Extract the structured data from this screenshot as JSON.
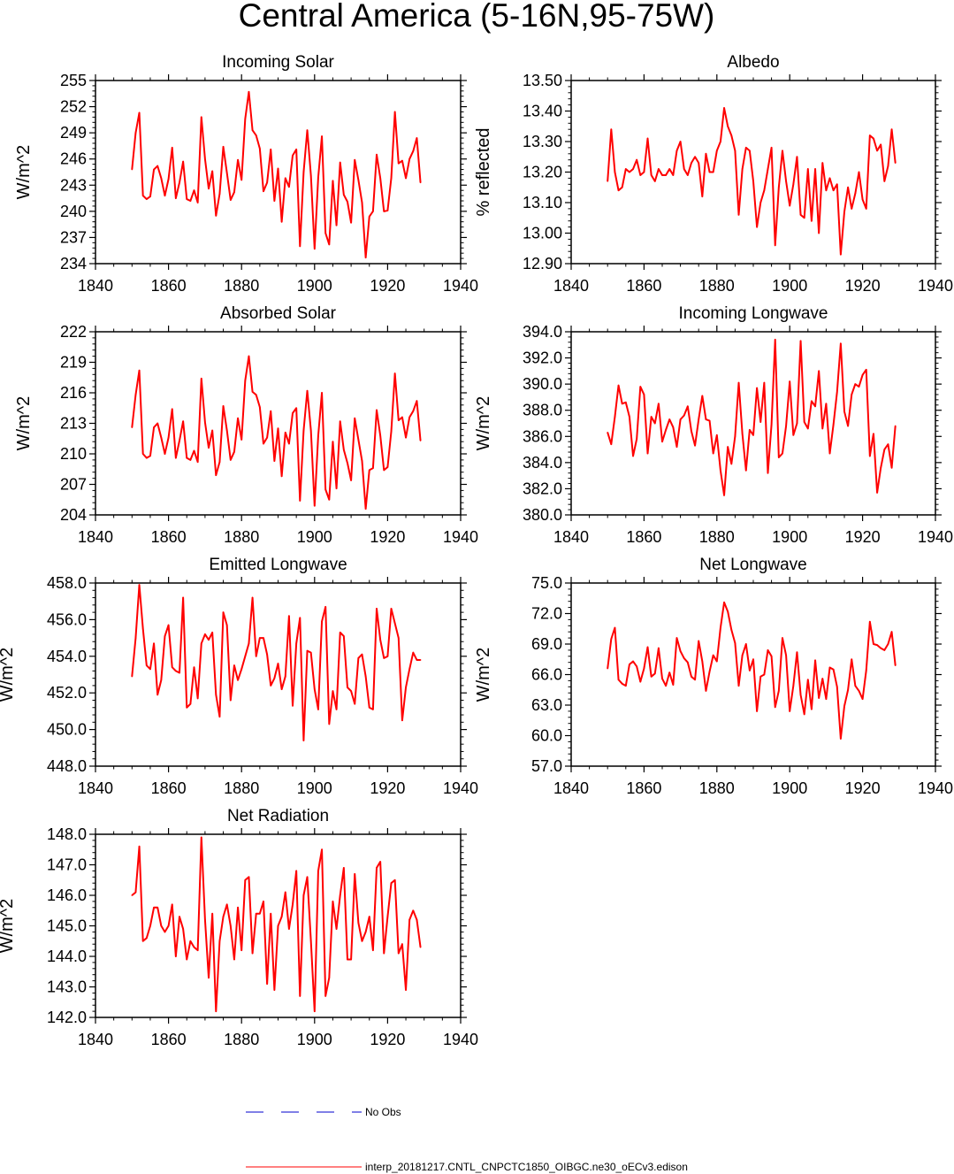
{
  "figure": {
    "title": "Central America (5-16N,95-75W)"
  },
  "colors": {
    "series": "#ff0000",
    "obs": "#0000cc",
    "axis": "#000000"
  },
  "legend": {
    "obs_label": "No Obs",
    "model_label": "interp_20181217.CNTL_CNPCTC1850_OIBGC.ne30_oECv3.edison"
  },
  "chart_data": [
    {
      "id": "incoming-solar",
      "type": "line",
      "title": "Incoming Solar",
      "ylabel": "W/m^2",
      "xlim": [
        1840,
        1940
      ],
      "ylim": [
        234,
        255
      ],
      "xticks": [
        1840,
        1860,
        1880,
        1900,
        1920,
        1940
      ],
      "xtick_labels": [
        "1840",
        "1860",
        "1880",
        "1900",
        "1920",
        "1940"
      ],
      "yticks": [
        234,
        237,
        240,
        243,
        246,
        249,
        252,
        255
      ],
      "ytick_labels": [
        "234",
        "237",
        "240",
        "243",
        "246",
        "249",
        "252",
        "255"
      ],
      "x_start": 1850,
      "values": [
        244.8,
        249.0,
        251.3,
        241.8,
        241.4,
        241.7,
        244.8,
        245.2,
        243.8,
        241.8,
        243.7,
        247.3,
        241.5,
        243.3,
        245.7,
        241.4,
        241.2,
        242.4,
        241.0,
        250.8,
        246.0,
        242.6,
        244.6,
        239.5,
        242.0,
        247.4,
        244.4,
        241.3,
        242.2,
        245.9,
        243.6,
        250.6,
        253.7,
        249.3,
        248.7,
        247.2,
        242.3,
        243.3,
        247.1,
        241.2,
        244.9,
        238.8,
        243.8,
        242.8,
        246.4,
        247.1,
        236.0,
        244.5,
        249.3,
        244.1,
        235.7,
        243.9,
        248.6,
        237.5,
        236.2,
        243.5,
        238.4,
        245.6,
        241.9,
        241.1,
        238.7,
        245.9,
        243.6,
        241.0,
        234.7,
        239.4,
        240.0,
        246.5,
        243.8,
        240.0,
        240.1,
        243.8,
        251.4,
        245.5,
        245.8,
        243.8,
        246.0,
        246.9,
        248.4,
        243.3
      ]
    },
    {
      "id": "albedo",
      "type": "line",
      "title": "Albedo",
      "ylabel": "% reflected",
      "xlim": [
        1840,
        1940
      ],
      "ylim": [
        12.9,
        13.5
      ],
      "xticks": [
        1840,
        1860,
        1880,
        1900,
        1920,
        1940
      ],
      "xtick_labels": [
        "1840",
        "1860",
        "1880",
        "1900",
        "1920",
        "1940"
      ],
      "yticks": [
        12.9,
        13.0,
        13.1,
        13.2,
        13.3,
        13.4,
        13.5
      ],
      "ytick_labels": [
        "12.90",
        "13.00",
        "13.10",
        "13.20",
        "13.30",
        "13.40",
        "13.50"
      ],
      "x_start": 1850,
      "values": [
        13.17,
        13.34,
        13.2,
        13.14,
        13.15,
        13.21,
        13.2,
        13.21,
        13.24,
        13.19,
        13.2,
        13.31,
        13.19,
        13.17,
        13.21,
        13.19,
        13.19,
        13.21,
        13.19,
        13.27,
        13.3,
        13.21,
        13.19,
        13.23,
        13.25,
        13.23,
        13.12,
        13.26,
        13.2,
        13.2,
        13.27,
        13.3,
        13.41,
        13.35,
        13.32,
        13.27,
        13.06,
        13.21,
        13.28,
        13.27,
        13.17,
        13.02,
        13.1,
        13.14,
        13.21,
        13.28,
        12.96,
        13.15,
        13.27,
        13.17,
        13.09,
        13.16,
        13.25,
        13.06,
        13.05,
        13.21,
        13.04,
        13.21,
        13.0,
        13.23,
        13.14,
        13.18,
        13.14,
        13.16,
        12.93,
        13.07,
        13.15,
        13.08,
        13.13,
        13.2,
        13.11,
        13.08,
        13.32,
        13.31,
        13.27,
        13.29,
        13.17,
        13.22,
        13.34,
        13.23
      ]
    },
    {
      "id": "absorbed-solar",
      "type": "line",
      "title": "Absorbed Solar",
      "ylabel": "W/m^2",
      "xlim": [
        1840,
        1940
      ],
      "ylim": [
        204,
        222
      ],
      "xticks": [
        1840,
        1860,
        1880,
        1900,
        1920,
        1940
      ],
      "xtick_labels": [
        "1840",
        "1860",
        "1880",
        "1900",
        "1920",
        "1940"
      ],
      "yticks": [
        204,
        207,
        210,
        213,
        216,
        219,
        222
      ],
      "ytick_labels": [
        "204",
        "207",
        "210",
        "213",
        "216",
        "219",
        "222"
      ],
      "x_start": 1850,
      "values": [
        212.6,
        215.8,
        218.2,
        210.0,
        209.6,
        209.8,
        212.6,
        213.0,
        211.6,
        210.0,
        211.6,
        214.4,
        209.6,
        211.3,
        213.2,
        209.6,
        209.4,
        210.3,
        209.2,
        217.4,
        213.1,
        210.6,
        212.3,
        207.9,
        209.2,
        214.7,
        212.3,
        209.4,
        210.2,
        213.5,
        211.4,
        217.2,
        219.6,
        216.1,
        215.8,
        214.6,
        211.0,
        211.6,
        214.2,
        209.3,
        212.5,
        207.8,
        212.1,
        211.0,
        214.0,
        214.5,
        205.4,
        212.3,
        216.2,
        212.3,
        204.9,
        211.8,
        216.0,
        206.5,
        205.5,
        211.2,
        206.6,
        213.2,
        210.4,
        209.1,
        207.4,
        213.5,
        211.4,
        209.3,
        204.6,
        208.4,
        208.6,
        214.3,
        211.8,
        208.4,
        208.7,
        212.2,
        217.9,
        213.3,
        213.6,
        211.6,
        213.6,
        214.2,
        215.2,
        211.3
      ]
    },
    {
      "id": "incoming-longwave",
      "type": "line",
      "title": "Incoming Longwave",
      "ylabel": "W/m^2",
      "xlim": [
        1840,
        1940
      ],
      "ylim": [
        380,
        394
      ],
      "xticks": [
        1840,
        1860,
        1880,
        1900,
        1920,
        1940
      ],
      "xtick_labels": [
        "1840",
        "1860",
        "1880",
        "1900",
        "1920",
        "1940"
      ],
      "yticks": [
        380,
        382,
        384,
        386,
        388,
        390,
        392,
        394
      ],
      "ytick_labels": [
        "380.0",
        "382.0",
        "384.0",
        "386.0",
        "388.0",
        "390.0",
        "392.0",
        "394.0"
      ],
      "x_start": 1850,
      "values": [
        386.3,
        385.4,
        387.5,
        389.9,
        388.5,
        388.6,
        387.5,
        384.5,
        385.8,
        389.8,
        389.2,
        384.7,
        387.5,
        387.0,
        388.5,
        385.6,
        386.5,
        387.3,
        386.7,
        385.2,
        387.3,
        387.6,
        388.3,
        386.4,
        385.3,
        387.3,
        389.1,
        387.3,
        387.2,
        384.7,
        386.1,
        383.4,
        381.5,
        385.2,
        383.9,
        386.0,
        390.1,
        386.2,
        383.4,
        386.5,
        386.1,
        389.7,
        387.1,
        390.1,
        383.2,
        386.9,
        393.4,
        384.4,
        384.7,
        386.8,
        390.2,
        386.1,
        387.0,
        393.3,
        387.1,
        386.6,
        388.7,
        388.3,
        391.0,
        386.6,
        388.5,
        384.7,
        386.9,
        389.4,
        393.1,
        387.9,
        386.8,
        389.2,
        390.0,
        389.8,
        390.7,
        391.1,
        384.5,
        386.2,
        381.7,
        383.6,
        385.0,
        385.4,
        383.6,
        386.8
      ]
    },
    {
      "id": "emitted-longwave",
      "type": "line",
      "title": "Emitted Longwave",
      "ylabel": "W/m^2",
      "xlim": [
        1840,
        1940
      ],
      "ylim": [
        448,
        458
      ],
      "xticks": [
        1840,
        1860,
        1880,
        1900,
        1920,
        1940
      ],
      "xtick_labels": [
        "1840",
        "1860",
        "1880",
        "1900",
        "1920",
        "1940"
      ],
      "yticks": [
        448,
        450,
        452,
        454,
        456,
        458
      ],
      "ytick_labels": [
        "448.0",
        "450.0",
        "452.0",
        "454.0",
        "456.0",
        "458.0"
      ],
      "x_start": 1850,
      "values": [
        452.9,
        455.0,
        457.9,
        455.5,
        453.5,
        453.3,
        454.7,
        451.9,
        452.7,
        455.1,
        455.7,
        453.4,
        453.2,
        453.1,
        457.2,
        451.2,
        451.4,
        453.4,
        451.7,
        454.7,
        455.2,
        454.9,
        455.3,
        451.9,
        450.7,
        456.4,
        455.7,
        451.6,
        453.5,
        452.7,
        453.3,
        454.0,
        454.7,
        457.2,
        454.0,
        455.0,
        455.0,
        454.1,
        452.4,
        452.8,
        453.6,
        452.2,
        452.9,
        456.2,
        451.3,
        454.7,
        456.1,
        449.4,
        454.3,
        454.2,
        452.2,
        451.1,
        455.9,
        456.7,
        450.3,
        452.1,
        451.1,
        455.3,
        455.1,
        452.3,
        452.1,
        451.4,
        453.9,
        454.1,
        452.9,
        451.2,
        451.1,
        456.6,
        454.9,
        453.9,
        454.0,
        456.6,
        455.8,
        455.0,
        450.5,
        452.3,
        453.3,
        454.2,
        453.8,
        453.8
      ]
    },
    {
      "id": "net-longwave",
      "type": "line",
      "title": "Net Longwave",
      "ylabel": "W/m^2",
      "xlim": [
        1840,
        1940
      ],
      "ylim": [
        57,
        75
      ],
      "xticks": [
        1840,
        1860,
        1880,
        1900,
        1920,
        1940
      ],
      "xtick_labels": [
        "1840",
        "1860",
        "1880",
        "1900",
        "1920",
        "1940"
      ],
      "yticks": [
        57,
        60,
        63,
        66,
        69,
        72,
        75
      ],
      "ytick_labels": [
        "57.0",
        "60.0",
        "63.0",
        "66.0",
        "69.0",
        "72.0",
        "75.0"
      ],
      "x_start": 1850,
      "values": [
        66.6,
        69.5,
        70.6,
        65.5,
        65.1,
        64.9,
        67.0,
        67.3,
        66.8,
        65.3,
        66.6,
        68.7,
        65.8,
        66.1,
        68.6,
        65.6,
        64.9,
        66.2,
        65.0,
        69.6,
        68.3,
        67.6,
        67.2,
        65.8,
        65.5,
        69.3,
        67.3,
        64.4,
        66.3,
        67.9,
        67.3,
        70.6,
        73.1,
        72.2,
        70.4,
        69.1,
        64.9,
        67.9,
        69.0,
        66.4,
        67.5,
        62.4,
        65.8,
        66.0,
        68.4,
        67.8,
        62.8,
        64.4,
        69.6,
        67.9,
        62.4,
        64.9,
        68.2,
        64.0,
        62.1,
        65.5,
        62.6,
        67.4,
        63.7,
        65.6,
        63.6,
        66.7,
        66.5,
        64.8,
        59.7,
        62.9,
        64.5,
        67.5,
        64.9,
        64.4,
        63.6,
        66.4,
        71.2,
        69.0,
        68.9,
        68.6,
        68.4,
        69.0,
        70.2,
        66.9
      ]
    },
    {
      "id": "net-radiation",
      "type": "line",
      "title": "Net Radiation",
      "ylabel": "W/m^2",
      "xlim": [
        1840,
        1940
      ],
      "ylim": [
        142,
        148
      ],
      "xticks": [
        1840,
        1860,
        1880,
        1900,
        1920,
        1940
      ],
      "xtick_labels": [
        "1840",
        "1860",
        "1880",
        "1900",
        "1920",
        "1940"
      ],
      "yticks": [
        142,
        143,
        144,
        145,
        146,
        147,
        148
      ],
      "ytick_labels": [
        "142.0",
        "143.0",
        "144.0",
        "145.0",
        "146.0",
        "147.0",
        "148.0"
      ],
      "x_start": 1850,
      "values": [
        146.0,
        146.1,
        147.6,
        144.5,
        144.6,
        145.0,
        145.6,
        145.6,
        145.0,
        144.8,
        145.0,
        145.7,
        144.0,
        145.3,
        144.9,
        143.9,
        144.5,
        144.3,
        144.2,
        147.9,
        145.2,
        143.3,
        145.4,
        142.2,
        144.5,
        145.3,
        145.7,
        145.0,
        143.9,
        145.6,
        144.2,
        146.5,
        146.6,
        144.1,
        145.4,
        145.4,
        145.8,
        143.1,
        145.4,
        142.9,
        145.0,
        145.3,
        146.1,
        144.9,
        145.7,
        146.8,
        142.7,
        146.0,
        146.6,
        144.5,
        142.2,
        146.8,
        147.5,
        142.7,
        143.3,
        145.8,
        144.9,
        146.0,
        146.9,
        143.9,
        143.9,
        146.7,
        145.1,
        144.5,
        144.8,
        145.3,
        144.2,
        146.9,
        147.1,
        144.1,
        145.3,
        146.4,
        146.5,
        144.1,
        144.4,
        142.9,
        145.2,
        145.5,
        145.2,
        144.3
      ]
    }
  ]
}
